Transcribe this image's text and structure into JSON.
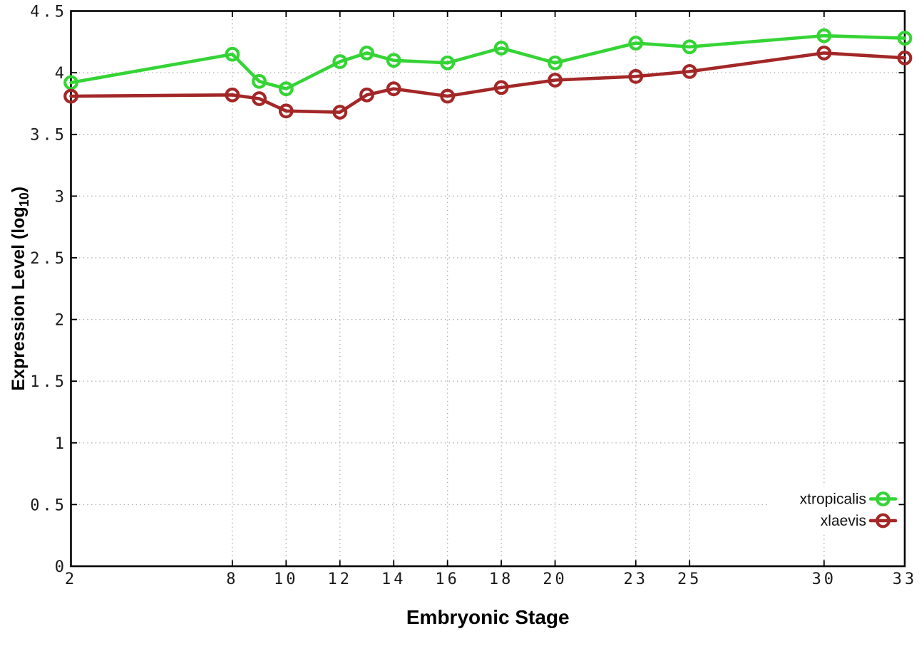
{
  "chart_data": {
    "type": "line",
    "title": "",
    "xlabel": "Embryonic Stage",
    "ylabel": "Expression Level (log10)",
    "ylabel_parts": {
      "pre": "Expression Level (log",
      "sub": "10",
      "post": ")"
    },
    "x": [
      2,
      8,
      9,
      10,
      12,
      13,
      14,
      16,
      18,
      20,
      23,
      25,
      30,
      33
    ],
    "x_ticks": [
      2,
      8,
      10,
      12,
      14,
      16,
      18,
      20,
      23,
      25,
      30,
      33
    ],
    "y_ticks": [
      0,
      0.5,
      1,
      1.5,
      2,
      2.5,
      3,
      3.5,
      4,
      4.5
    ],
    "xlim": [
      2,
      33
    ],
    "ylim": [
      0,
      4.5
    ],
    "grid": true,
    "grid_style": "dotted",
    "legend_position": "inside-bottom-right",
    "legend_opaque": true,
    "marker": "open-circle",
    "series": [
      {
        "name": "xtropicalis",
        "color": "#35d435",
        "values": [
          3.92,
          4.15,
          3.93,
          3.87,
          4.09,
          4.16,
          4.1,
          4.08,
          4.2,
          4.08,
          4.24,
          4.21,
          4.3,
          4.28
        ]
      },
      {
        "name": "xlaevis",
        "color": "#a32727",
        "values": [
          3.81,
          3.82,
          3.79,
          3.69,
          3.68,
          3.82,
          3.87,
          3.81,
          3.88,
          3.94,
          3.97,
          4.01,
          4.16,
          4.12
        ]
      }
    ],
    "colors": {
      "background": "#ffffff",
      "plot_border": "#000000",
      "grid": "#b3b3b3",
      "tick": "#000000",
      "text": "#1a1a1a"
    }
  }
}
